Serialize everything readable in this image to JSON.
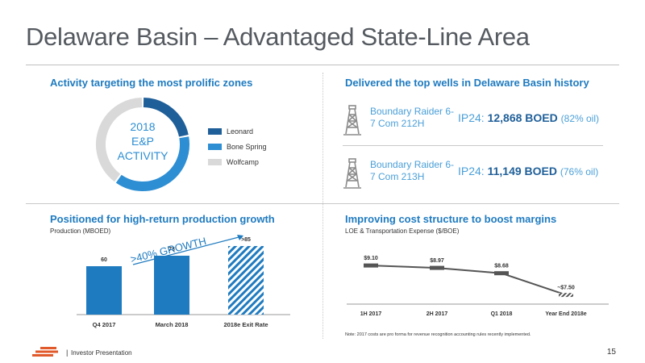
{
  "title": "Delaware Basin – Advantaged State-Line Area",
  "activity": {
    "heading": "Activity targeting the most prolific zones",
    "donut_center": [
      "2018",
      "E&P",
      "ACTIVITY"
    ],
    "legend": [
      {
        "label": "Leonard",
        "color": "#1f5f99"
      },
      {
        "label": "Bone Spring",
        "color": "#2d8ed3"
      },
      {
        "label": "Wolfcamp",
        "color": "#d9d9d9"
      }
    ],
    "shares": [
      0.22,
      0.38,
      0.4
    ]
  },
  "wells": {
    "heading": "Delivered the top wells in Delaware Basin history",
    "items": [
      {
        "name": "Boundary Raider 6-7 Com 212H",
        "ip_label": "IP24:",
        "boed": "12,868 BOED",
        "oil": "(82% oil)",
        "icon": "oil-derrick-icon"
      },
      {
        "name": "Boundary Raider 6-7 Com 213H",
        "ip_label": "IP24:",
        "boed": "11,149 BOED",
        "oil": "(76% oil)",
        "icon": "oil-derrick-icon"
      }
    ]
  },
  "production": {
    "heading": "Positioned for high-return production growth",
    "subtitle": "Production (MBOED)",
    "growth_label": ">40% GROWTH"
  },
  "costs": {
    "heading": "Improving cost structure to boost margins",
    "subtitle": "LOE & Transportation Expense ($/BOE)",
    "note": "Note: 2017 costs are pro forma for revenue recognition accounting rules recently implemented."
  },
  "chart_data": [
    {
      "type": "bar",
      "title": "Production (MBOED)",
      "categories": [
        "Q4 2017",
        "March 2018",
        "2018e Exit Rate"
      ],
      "values": [
        60,
        73,
        85
      ],
      "value_labels": [
        "60",
        "73",
        ">85"
      ],
      "ylim": [
        0,
        90
      ],
      "colors": [
        "#1f7bc0",
        "#1f7bc0",
        "#1f7bc0"
      ]
    },
    {
      "type": "line",
      "title": "LOE & Transportation Expense ($/BOE)",
      "categories": [
        "1H 2017",
        "2H 2017",
        "Q1 2018",
        "Year End 2018e"
      ],
      "values": [
        9.1,
        8.97,
        8.68,
        7.5
      ],
      "value_labels": [
        "$9.10",
        "$8.97",
        "$8.68",
        "~$7.50"
      ],
      "ylim": [
        7.0,
        9.5
      ]
    }
  ],
  "footer": {
    "separator": "|",
    "text": "Investor Presentation",
    "page": "15"
  }
}
